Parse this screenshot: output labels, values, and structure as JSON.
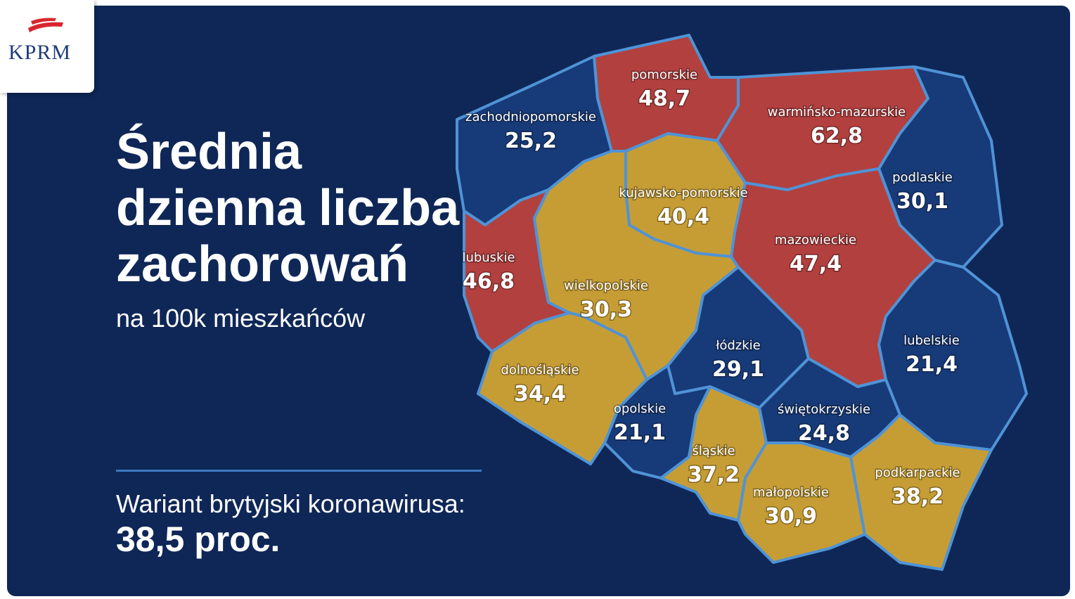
{
  "logo": "KPRM",
  "title": [
    "Średnia",
    "dzienna liczba",
    "zachorowań"
  ],
  "subtitle": "na 100k mieszkańców",
  "variant": {
    "label": "Wariant brytyjski koronawirusa:",
    "value": "38,5 proc."
  },
  "regions": [
    {
      "name": "zachodniopomorskie",
      "value": "25,2",
      "color": "#173a78"
    },
    {
      "name": "pomorskie",
      "value": "48,7",
      "color": "#b2403f"
    },
    {
      "name": "warmińsko-mazurskie",
      "value": "62,8",
      "color": "#b2403f"
    },
    {
      "name": "podlaskie",
      "value": "30,1",
      "color": "#173a78"
    },
    {
      "name": "kujawsko-pomorskie",
      "value": "40,4",
      "color": "#c69d34"
    },
    {
      "name": "lubuskie",
      "value": "46,8",
      "color": "#b2403f"
    },
    {
      "name": "wielkopolskie",
      "value": "30,3",
      "color": "#c69d34"
    },
    {
      "name": "mazowieckie",
      "value": "47,4",
      "color": "#b2403f"
    },
    {
      "name": "lubelskie",
      "value": "21,4",
      "color": "#173a78"
    },
    {
      "name": "dolnośląskie",
      "value": "34,4",
      "color": "#c69d34"
    },
    {
      "name": "łódzkie",
      "value": "29,1",
      "color": "#173a78"
    },
    {
      "name": "opolskie",
      "value": "21,1",
      "color": "#173a78"
    },
    {
      "name": "świętokrzyskie",
      "value": "24,8",
      "color": "#173a78"
    },
    {
      "name": "śląskie",
      "value": "37,2",
      "color": "#c69d34"
    },
    {
      "name": "małopolskie",
      "value": "30,9",
      "color": "#c69d34"
    },
    {
      "name": "podkarpackie",
      "value": "38,2",
      "color": "#c69d34"
    }
  ]
}
